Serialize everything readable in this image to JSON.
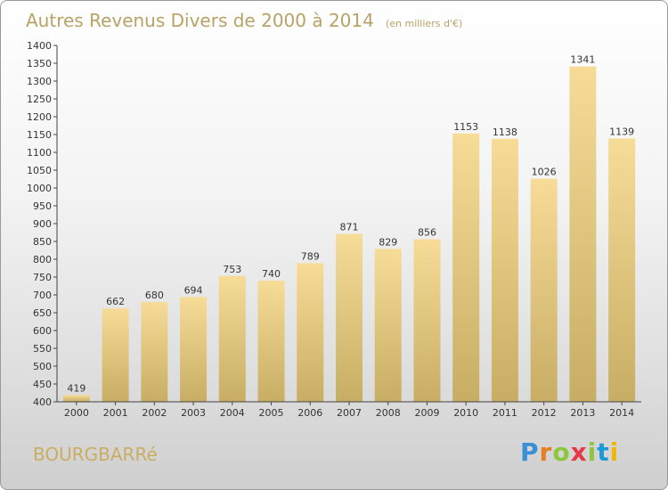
{
  "header": {
    "title": "Autres Revenus Divers de 2000 à 2014",
    "subtitle": "(en milliers d'€)"
  },
  "footer": {
    "place_name": "BOURGBARRé",
    "logo": "Proxiti",
    "logo_colors": [
      "#3a8fd6",
      "#e67e22",
      "#8dc63f",
      "#e63946",
      "#8dc63f",
      "#1a9ad6",
      "#f2b705"
    ]
  },
  "colors": {
    "bar_top": "#f6dc97",
    "bar_bottom": "#c8ad64",
    "text": "#b8a266"
  },
  "chart_data": {
    "type": "bar",
    "title": "Autres Revenus Divers de 2000 à 2014",
    "categories": [
      "2000",
      "2001",
      "2002",
      "2003",
      "2004",
      "2005",
      "2006",
      "2007",
      "2008",
      "2009",
      "2010",
      "2011",
      "2012",
      "2013",
      "2014"
    ],
    "values": [
      419,
      662,
      680,
      694,
      753,
      740,
      789,
      871,
      829,
      856,
      1153,
      1138,
      1026,
      1341,
      1139
    ],
    "xlabel": "",
    "ylabel": "",
    "ylim": [
      400,
      1400
    ],
    "yticks": [
      400,
      450,
      500,
      550,
      600,
      650,
      700,
      750,
      800,
      850,
      900,
      950,
      1000,
      1050,
      1100,
      1150,
      1200,
      1250,
      1300,
      1350,
      1400
    ],
    "grid": false,
    "data_labels": true
  }
}
